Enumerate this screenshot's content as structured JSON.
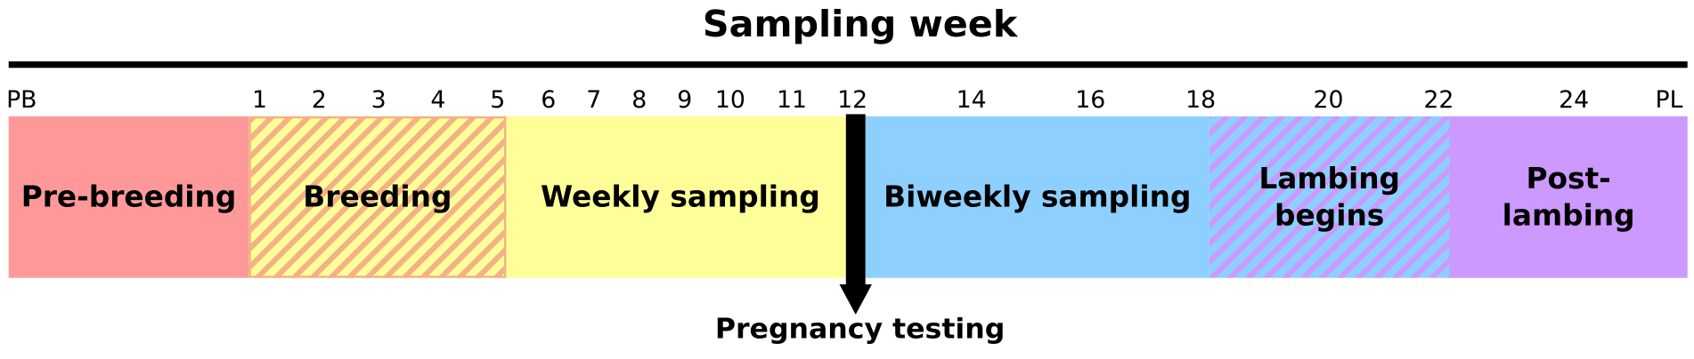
{
  "title": "Sampling week",
  "ticks": [
    "PB",
    "1",
    "2",
    "3",
    "4",
    "5",
    "6",
    "7",
    "8",
    "9",
    "10",
    "11",
    "12",
    "14",
    "16",
    "18",
    "20",
    "22",
    "24",
    "PL"
  ],
  "segments": [
    {
      "lines": [
        "Pre-breeding"
      ]
    },
    {
      "lines": [
        "Breeding"
      ]
    },
    {
      "lines": [
        "Weekly sampling"
      ]
    },
    {
      "lines": [
        "Biweekly sampling"
      ]
    },
    {
      "lines": [
        "Lambing",
        "begins"
      ]
    },
    {
      "lines": [
        "Post-",
        "lambing"
      ]
    }
  ],
  "annotation": "Pregnancy testing"
}
